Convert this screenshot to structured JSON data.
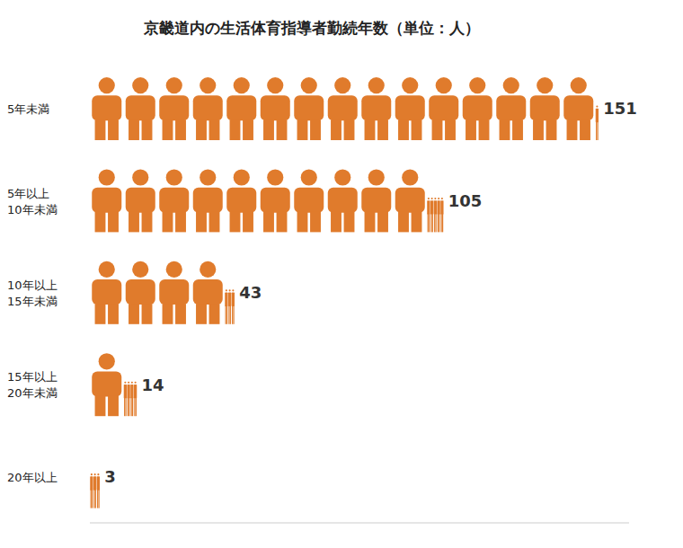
{
  "chart_data": {
    "type": "bar",
    "title": "京畿道内の生活体育指導者勤続年数（単位：人）",
    "categories": [
      "5年未満",
      "5年以上 10年未満",
      "10年以上 15年未満",
      "15年以上 20年未満",
      "20年以上"
    ],
    "values": [
      151,
      105,
      43,
      14,
      3
    ],
    "color": "#e07b2c",
    "orientation": "horizontal",
    "data_labels": true,
    "xlim": [
      0,
      160
    ],
    "tick_labels": "y",
    "grid": false
  }
}
